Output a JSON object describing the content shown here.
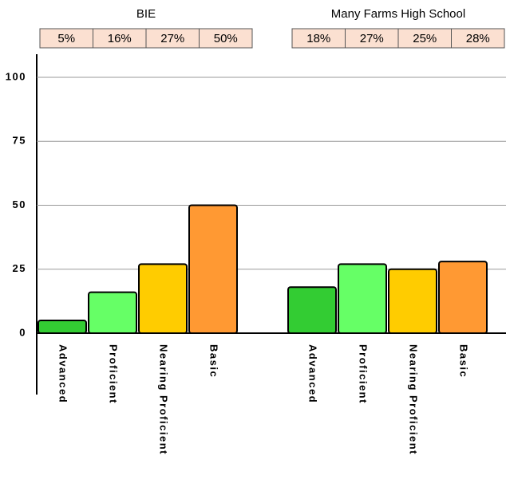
{
  "chart_data": {
    "type": "bar",
    "categories": [
      "Advanced",
      "Proficient",
      "Nearing Proficient",
      "Basic"
    ],
    "colors": [
      "#33cc33",
      "#66ff66",
      "#ffcc00",
      "#ff9933"
    ],
    "series": [
      {
        "name": "BIE",
        "values": [
          5,
          16,
          27,
          50
        ],
        "value_labels": [
          "5%",
          "16%",
          "27%",
          "50%"
        ]
      },
      {
        "name": "Many Farms High School",
        "values": [
          18,
          27,
          25,
          28
        ],
        "value_labels": [
          "18%",
          "27%",
          "25%",
          "28%"
        ]
      }
    ],
    "ylim": [
      0,
      100
    ],
    "yticks": [
      0,
      25,
      50,
      75,
      100
    ],
    "grid": true
  }
}
